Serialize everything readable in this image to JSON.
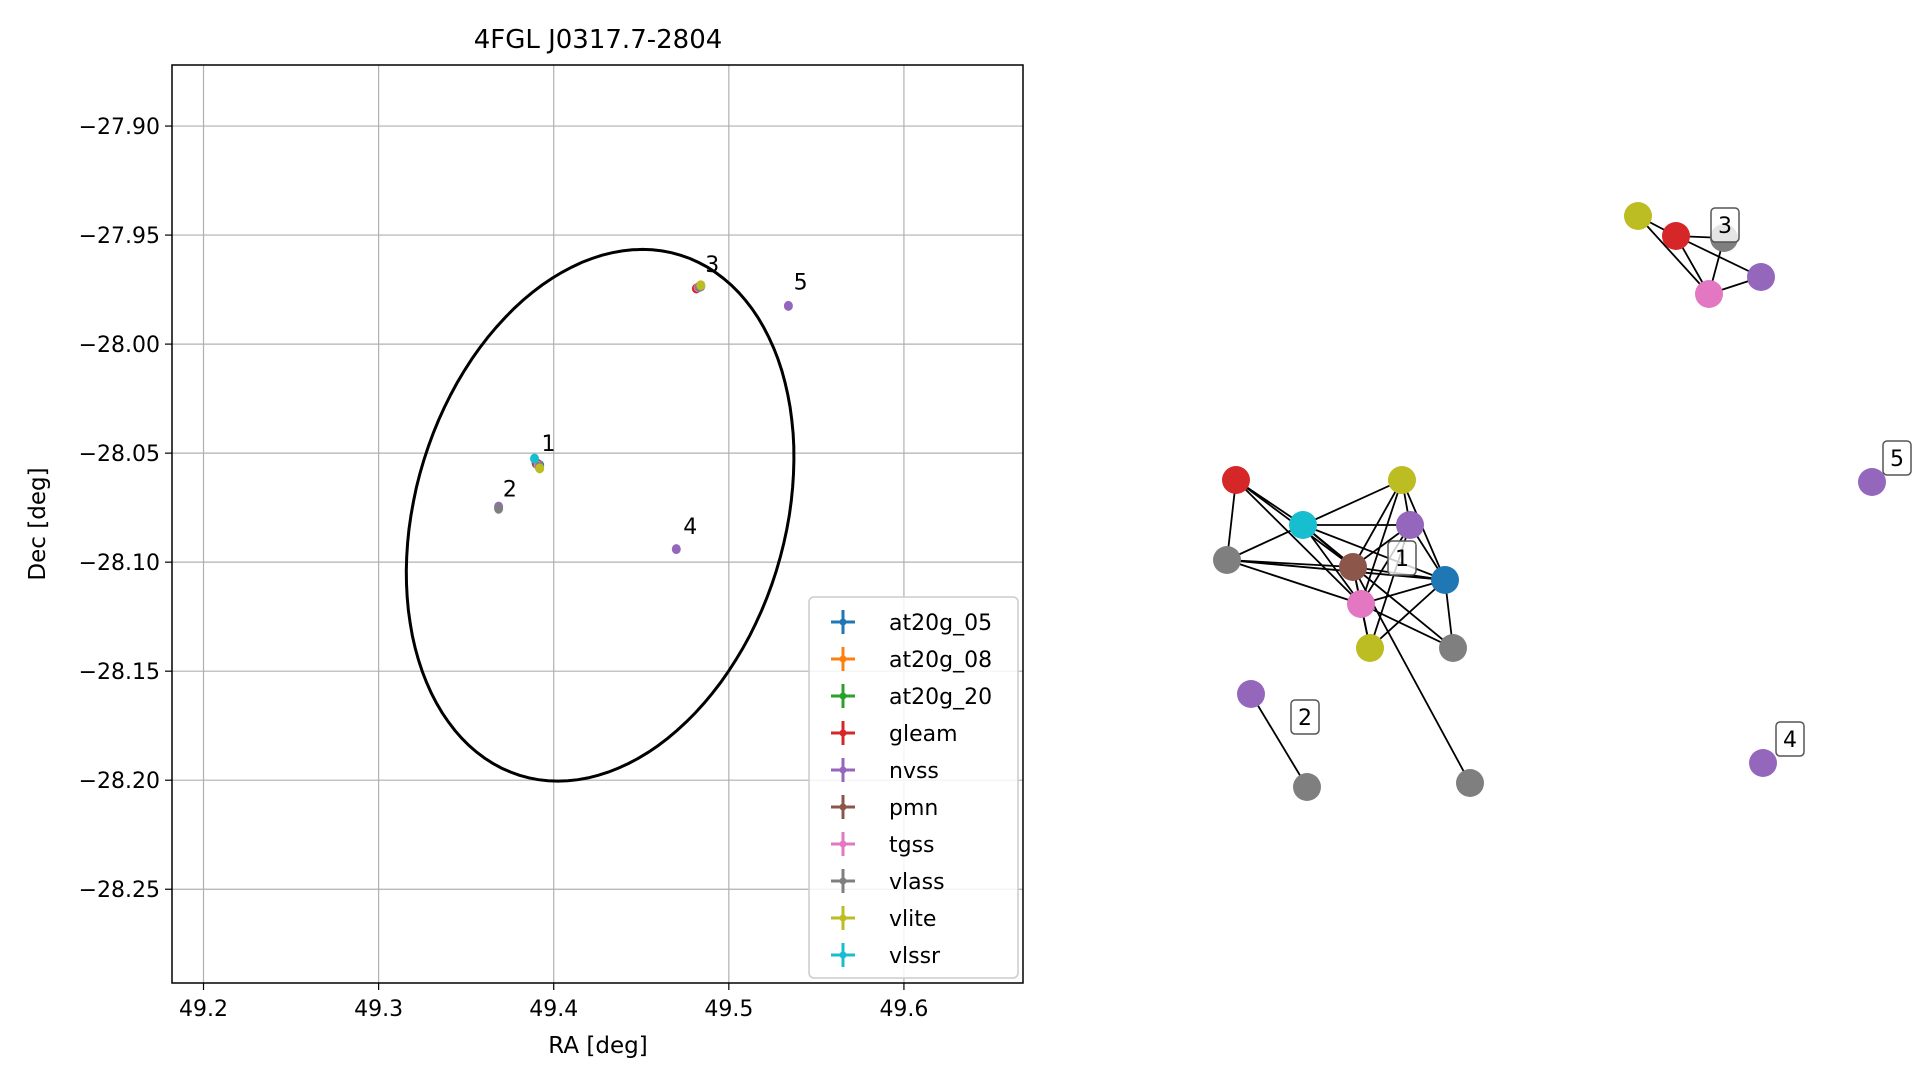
{
  "chart_data": [
    {
      "type": "scatter",
      "title": "4FGL J0317.7-2804",
      "xlabel": "RA [deg]",
      "ylabel": "Dec [deg]",
      "xlim": [
        49.182,
        49.668
      ],
      "ylim": [
        -28.293,
        -27.872
      ],
      "xticks": [
        49.2,
        49.3,
        49.4,
        49.5,
        49.6
      ],
      "xtick_labels": [
        "49.2",
        "49.3",
        "49.4",
        "49.5",
        "49.6"
      ],
      "yticks": [
        -27.9,
        -27.95,
        -28.0,
        -28.05,
        -28.1,
        -28.15,
        -28.2,
        -28.25
      ],
      "ytick_labels": [
        "−27.90",
        "−27.95",
        "−28.00",
        "−28.05",
        "−28.10",
        "−28.15",
        "−28.20",
        "−28.25"
      ],
      "grid": true,
      "legend_position": "lower right",
      "ellipse": {
        "center": [
          49.4265,
          -28.0785
        ],
        "semi_axis_a": 0.1295,
        "semi_axis_b": 0.1017,
        "angle_deg": 57
      },
      "series": [
        {
          "name": "at20g_05",
          "color": "#1f77b4",
          "points": [
            [
              49.392,
              -28.0555
            ]
          ]
        },
        {
          "name": "at20g_08",
          "color": "#ff7f0e",
          "points": [
            [
              49.391,
              -28.055
            ]
          ]
        },
        {
          "name": "at20g_20",
          "color": "#2ca02c",
          "points": [
            [
              49.39,
              -28.0548
            ]
          ]
        },
        {
          "name": "gleam",
          "color": "#d62728",
          "points": [
            [
              49.39,
              -28.0545
            ],
            [
              49.4815,
              -27.9745
            ]
          ]
        },
        {
          "name": "nvss",
          "color": "#9467bd",
          "points": [
            [
              49.3905,
              -28.0548
            ],
            [
              49.47,
              -28.094
            ],
            [
              49.534,
              -27.9825
            ],
            [
              49.3685,
              -28.0745
            ],
            [
              49.484,
              -27.9735
            ]
          ]
        },
        {
          "name": "pmn",
          "color": "#8c564b",
          "points": [
            [
              49.3908,
              -28.0552
            ]
          ]
        },
        {
          "name": "tgss",
          "color": "#e377c2",
          "points": [
            [
              49.3912,
              -28.0558
            ],
            [
              49.4825,
              -27.974
            ]
          ]
        },
        {
          "name": "vlass",
          "color": "#7f7f7f",
          "points": [
            [
              49.3918,
              -28.0562
            ],
            [
              49.3685,
              -28.0755
            ],
            [
              49.483,
              -27.9738
            ]
          ]
        },
        {
          "name": "vlite",
          "color": "#bcbd22",
          "points": [
            [
              49.392,
              -28.057
            ],
            [
              49.484,
              -27.973
            ]
          ]
        },
        {
          "name": "vlssr",
          "color": "#17becf",
          "points": [
            [
              49.389,
              -28.0525
            ]
          ]
        }
      ],
      "annotations": [
        {
          "text": "1",
          "at": [
            49.393,
            -28.049
          ]
        },
        {
          "text": "2",
          "at": [
            49.371,
            -28.07
          ]
        },
        {
          "text": "3",
          "at": [
            49.4865,
            -27.967
          ]
        },
        {
          "text": "4",
          "at": [
            49.474,
            -28.087
          ]
        },
        {
          "text": "5",
          "at": [
            49.537,
            -27.975
          ]
        }
      ]
    },
    {
      "type": "network",
      "nodes": [
        {
          "id": "c1_red",
          "color": "#d62728"
        },
        {
          "id": "c1_cyan",
          "color": "#17becf"
        },
        {
          "id": "c1_gray_left",
          "color": "#7f7f7f"
        },
        {
          "id": "c1_brown",
          "color": "#8c564b"
        },
        {
          "id": "c1_olive_top",
          "color": "#bcbd22"
        },
        {
          "id": "c1_purple",
          "color": "#9467bd"
        },
        {
          "id": "c1_blue",
          "color": "#1f77b4"
        },
        {
          "id": "c1_pink",
          "color": "#e377c2"
        },
        {
          "id": "c1_olive_bottom",
          "color": "#bcbd22"
        },
        {
          "id": "c1_gray_right",
          "color": "#7f7f7f"
        },
        {
          "id": "c1_gray_far",
          "color": "#7f7f7f"
        },
        {
          "id": "c2_purple",
          "color": "#9467bd"
        },
        {
          "id": "c2_gray",
          "color": "#7f7f7f"
        },
        {
          "id": "c3_olive",
          "color": "#bcbd22"
        },
        {
          "id": "c3_red",
          "color": "#d62728"
        },
        {
          "id": "c3_gray",
          "color": "#7f7f7f"
        },
        {
          "id": "c3_pink",
          "color": "#e377c2"
        },
        {
          "id": "c3_purple",
          "color": "#9467bd"
        },
        {
          "id": "c4_purple",
          "color": "#9467bd"
        },
        {
          "id": "c5_purple",
          "color": "#9467bd"
        }
      ],
      "edges": [
        [
          "c1_red",
          "c1_cyan"
        ],
        [
          "c1_red",
          "c1_brown"
        ],
        [
          "c1_red",
          "c1_pink"
        ],
        [
          "c1_red",
          "c1_gray_left"
        ],
        [
          "c1_cyan",
          "c1_gray_left"
        ],
        [
          "c1_cyan",
          "c1_olive_top"
        ],
        [
          "c1_cyan",
          "c1_purple"
        ],
        [
          "c1_cyan",
          "c1_brown"
        ],
        [
          "c1_cyan",
          "c1_blue"
        ],
        [
          "c1_cyan",
          "c1_pink"
        ],
        [
          "c1_cyan",
          "c1_gray_right"
        ],
        [
          "c1_gray_left",
          "c1_brown"
        ],
        [
          "c1_gray_left",
          "c1_blue"
        ],
        [
          "c1_gray_left",
          "c1_pink"
        ],
        [
          "c1_brown",
          "c1_olive_top"
        ],
        [
          "c1_brown",
          "c1_purple"
        ],
        [
          "c1_brown",
          "c1_blue"
        ],
        [
          "c1_brown",
          "c1_pink"
        ],
        [
          "c1_brown",
          "c1_olive_bottom"
        ],
        [
          "c1_brown",
          "c1_gray_far"
        ],
        [
          "c1_olive_top",
          "c1_purple"
        ],
        [
          "c1_olive_top",
          "c1_blue"
        ],
        [
          "c1_olive_top",
          "c1_pink"
        ],
        [
          "c1_purple",
          "c1_blue"
        ],
        [
          "c1_purple",
          "c1_pink"
        ],
        [
          "c1_purple",
          "c1_olive_bottom"
        ],
        [
          "c1_blue",
          "c1_pink"
        ],
        [
          "c1_blue",
          "c1_olive_bottom"
        ],
        [
          "c1_blue",
          "c1_gray_right"
        ],
        [
          "c1_pink",
          "c1_olive_bottom"
        ],
        [
          "c1_pink",
          "c1_gray_right"
        ],
        [
          "c2_purple",
          "c2_gray"
        ],
        [
          "c3_olive",
          "c3_red"
        ],
        [
          "c3_olive",
          "c3_pink"
        ],
        [
          "c3_red",
          "c3_gray"
        ],
        [
          "c3_red",
          "c3_purple"
        ],
        [
          "c3_red",
          "c3_pink"
        ],
        [
          "c3_gray",
          "c3_pink"
        ],
        [
          "c3_pink",
          "c3_purple"
        ]
      ],
      "labels": [
        {
          "text": "1",
          "cluster": 1
        },
        {
          "text": "2",
          "cluster": 2
        },
        {
          "text": "3",
          "cluster": 3
        },
        {
          "text": "4",
          "cluster": 4
        },
        {
          "text": "5",
          "cluster": 5
        }
      ]
    }
  ]
}
